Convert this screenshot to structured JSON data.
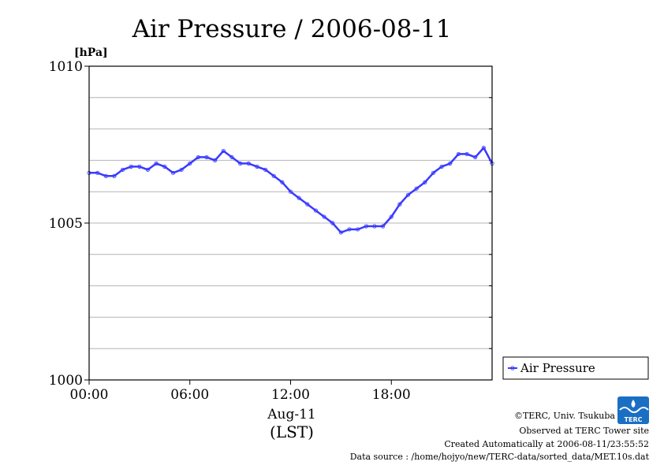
{
  "chart_data": {
    "type": "line",
    "title": "Air Pressure / 2006-08-11",
    "ylabel": "[hPa]",
    "xlabel": "Aug-11",
    "xlabel_sub": "(LST)",
    "ylim": [
      1000,
      1010
    ],
    "yticks": [
      "1000",
      "1005",
      "1010"
    ],
    "y_minor_step": 1,
    "xlim": [
      0,
      24
    ],
    "xticks": [
      {
        "x": 0,
        "label": "00:00"
      },
      {
        "x": 6,
        "label": "06:00"
      },
      {
        "x": 12,
        "label": "12:00"
      },
      {
        "x": 18,
        "label": "18:00"
      }
    ],
    "grid": "horizontal",
    "legend_position": "bottom-right-outside",
    "series": [
      {
        "name": "Air Pressure",
        "color": "#3a3aff",
        "x": [
          0,
          0.5,
          1,
          1.5,
          2,
          2.5,
          3,
          3.5,
          4,
          4.5,
          5,
          5.5,
          6,
          6.5,
          7,
          7.5,
          8,
          8.5,
          9,
          9.5,
          10,
          10.5,
          11,
          11.5,
          12,
          12.5,
          13,
          13.5,
          14,
          14.5,
          15,
          15.5,
          16,
          16.5,
          17,
          17.5,
          18,
          18.5,
          19,
          19.5,
          20,
          20.5,
          21,
          21.5,
          22,
          22.5,
          23,
          23.5,
          24
        ],
        "values": [
          1006.6,
          1006.6,
          1006.5,
          1006.5,
          1006.7,
          1006.8,
          1006.8,
          1006.7,
          1006.9,
          1006.8,
          1006.6,
          1006.7,
          1006.9,
          1007.1,
          1007.1,
          1007.0,
          1007.3,
          1007.1,
          1006.9,
          1006.9,
          1006.8,
          1006.7,
          1006.5,
          1006.3,
          1006.0,
          1005.8,
          1005.6,
          1005.4,
          1005.2,
          1005.0,
          1004.7,
          1004.8,
          1004.8,
          1004.9,
          1004.9,
          1004.9,
          1005.2,
          1005.6,
          1005.9,
          1006.1,
          1006.3,
          1006.6,
          1006.8,
          1006.9,
          1007.2,
          1007.2,
          1007.1,
          1007.4,
          1006.9
        ]
      }
    ]
  },
  "credits": {
    "copyright": "©TERC, Univ. Tsukuba",
    "site": "Observed at TERC Tower site",
    "created": "Created Automatically at 2006-08-11/23:55:52",
    "source": "Data source : /home/hojyo/new/TERC-data/sorted_data/MET.10s.dat"
  },
  "logo": {
    "text": "TERC",
    "color": "#1a6fc4"
  }
}
